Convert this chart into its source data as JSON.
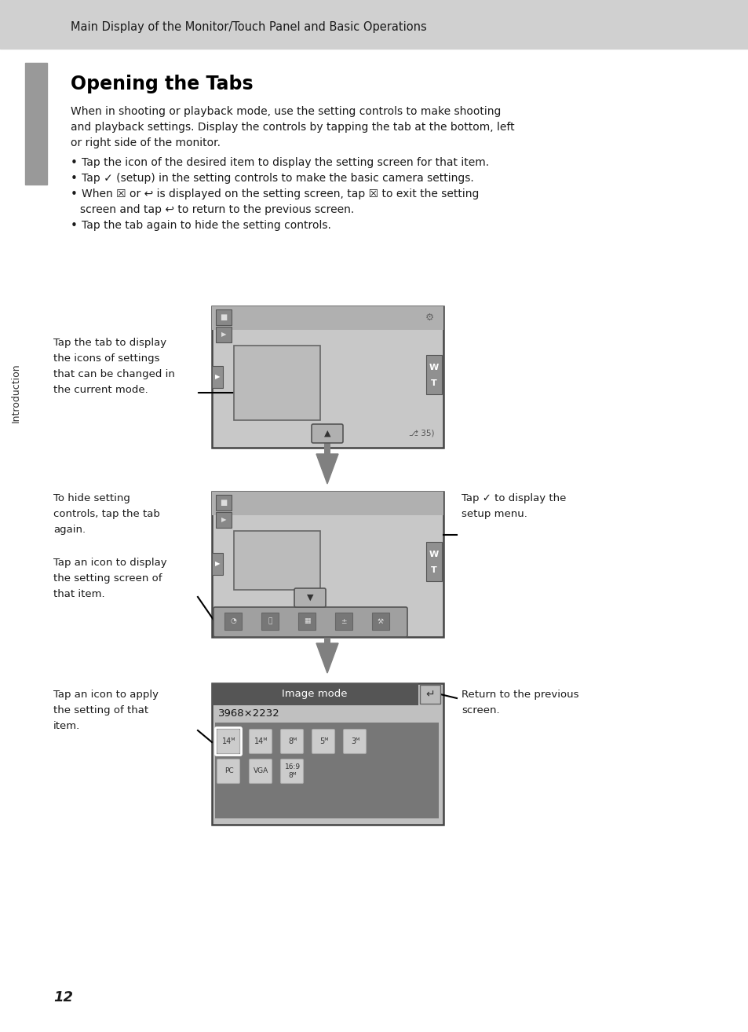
{
  "page_bg": "#ffffff",
  "header_bg": "#d0d0d0",
  "header_text": "Main Display of the Monitor/Touch Panel and Basic Operations",
  "title": "Opening the Tabs",
  "sidebar_bg": "#999999",
  "arrow_color": "#808080",
  "screen_bg": "#c8c8c8",
  "screen_top_bar": "#b0b0b0",
  "screen_inner_rect": "#c0c0c0",
  "tw_btn_bg": "#909090",
  "left_btn_bg": "#909090",
  "tab_btn_bg": "#b0b0b0",
  "icon_bar_bg": "#a0a0a0",
  "icon_bg": "#888888",
  "imgmode_title_bg": "#555555",
  "imgmode_bg": "#c0c0c0",
  "imgmode_icon_area": "#777777",
  "imgmode_icon_bg": "#cccccc",
  "footer_page": "12"
}
